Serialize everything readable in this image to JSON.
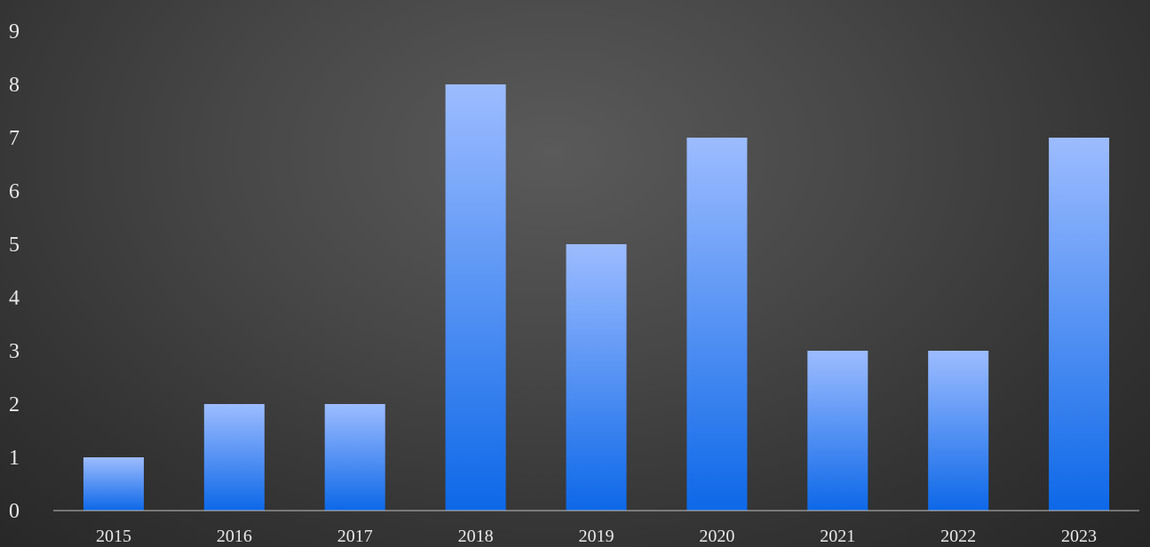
{
  "chart_data": {
    "type": "bar",
    "title": "",
    "xlabel": "",
    "ylabel": "",
    "categories": [
      "2015",
      "2016",
      "2017",
      "2018",
      "2019",
      "2020",
      "2021",
      "2022",
      "2023"
    ],
    "values": [
      1,
      2,
      2,
      8,
      5,
      7,
      3,
      3,
      7
    ],
    "ylim": [
      0,
      9
    ],
    "yticks": [
      "0",
      "1",
      "2",
      "3",
      "4",
      "5",
      "6",
      "7",
      "8",
      "9"
    ],
    "grid": false,
    "legend": "none",
    "colors": {
      "bar_top": "#9dbcff",
      "bar_bottom": "#0d68e8",
      "background_center": "#5a5a5a",
      "background_edge": "#262626",
      "axis": "#bfbfbf",
      "text": "#e9e9e9"
    }
  }
}
